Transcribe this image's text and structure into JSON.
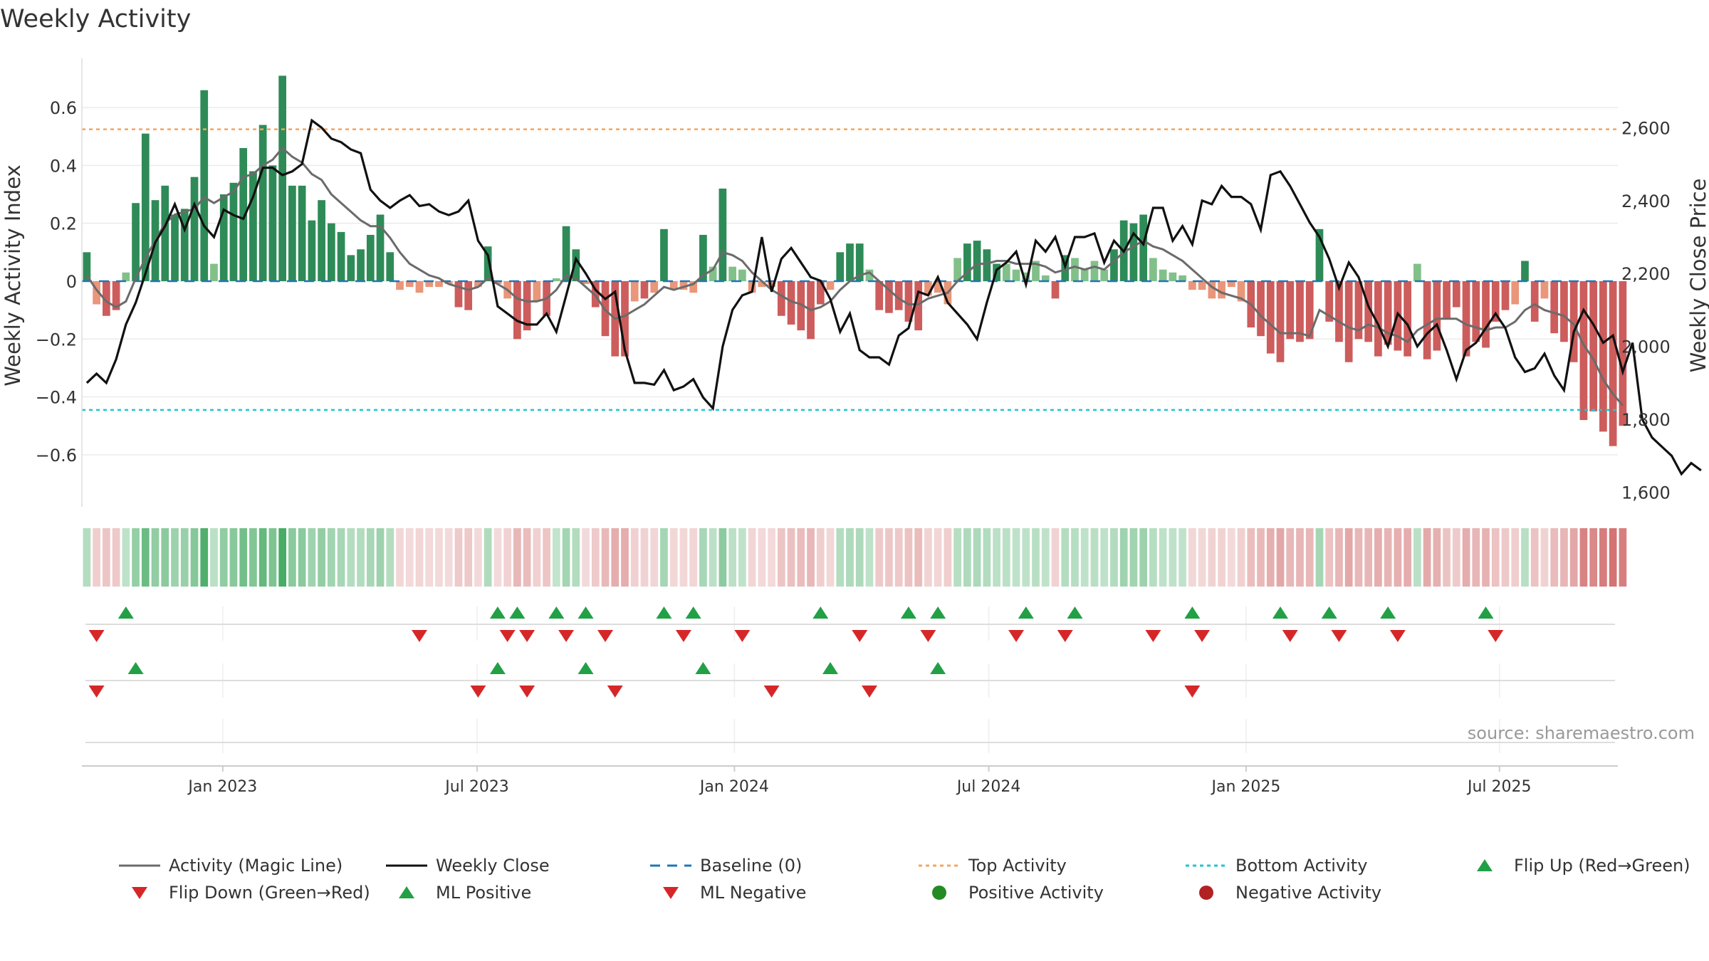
{
  "chart_data": {
    "type": "bar",
    "title": "Weekly Activity",
    "ylabel": "Weekly Activity Index",
    "y2label": "Weekly Close Price",
    "source": "source: sharemaestro.com",
    "ylim": [
      -0.78,
      0.77
    ],
    "y2lim": [
      1560,
      2790
    ],
    "yticks": [
      0.6,
      0.4,
      0.2,
      0,
      -0.2,
      -0.4,
      -0.6
    ],
    "ytick_labels": [
      "0.6",
      "0.4",
      "0.2",
      "0",
      "−0.2",
      "−0.4",
      "−0.6"
    ],
    "y2ticks": [
      2600,
      2400,
      2200,
      2000,
      1800,
      1600
    ],
    "y2tick_labels": [
      "2,600",
      "2,400",
      "2,200",
      "2,000",
      "1,800",
      "1,600"
    ],
    "xlabels": [
      "Jan 2023",
      "Jul 2023",
      "Jan 2024",
      "Jul 2024",
      "Jan 2025",
      "Jul 2025"
    ],
    "xlabel_weeks": [
      14.4,
      40.4,
      66.7,
      92.7,
      119.0,
      144.9
    ],
    "top_activity": 0.525,
    "bottom_activity": -0.445,
    "weeks": 157,
    "activity": [
      0.1,
      -0.08,
      -0.12,
      -0.1,
      0.03,
      0.27,
      0.51,
      0.28,
      0.33,
      0.23,
      0.25,
      0.36,
      0.66,
      0.06,
      0.3,
      0.34,
      0.46,
      0.38,
      0.54,
      0.4,
      0.71,
      0.33,
      0.33,
      0.21,
      0.28,
      0.2,
      0.17,
      0.09,
      0.11,
      0.16,
      0.23,
      0.1,
      -0.03,
      -0.02,
      -0.04,
      -0.02,
      -0.02,
      -0.01,
      -0.09,
      -0.1,
      -0.02,
      0.12,
      -0.01,
      -0.06,
      -0.2,
      -0.17,
      -0.07,
      -0.12,
      0.01,
      0.19,
      0.11,
      -0.01,
      -0.09,
      -0.19,
      -0.26,
      -0.26,
      -0.07,
      -0.06,
      -0.04,
      0.18,
      -0.03,
      -0.03,
      -0.04,
      0.16,
      0.05,
      0.32,
      0.05,
      0.04,
      -0.04,
      -0.02,
      -0.02,
      -0.12,
      -0.15,
      -0.17,
      -0.2,
      -0.08,
      -0.03,
      0.1,
      0.13,
      0.13,
      0.04,
      -0.1,
      -0.11,
      -0.1,
      -0.14,
      -0.17,
      -0.05,
      -0.04,
      -0.08,
      0.08,
      0.13,
      0.14,
      0.11,
      0.06,
      0.06,
      0.04,
      0.03,
      0.07,
      0.02,
      -0.06,
      0.09,
      0.08,
      0.04,
      0.07,
      0.04,
      0.11,
      0.21,
      0.2,
      0.23,
      0.08,
      0.04,
      0.03,
      0.02,
      -0.03,
      -0.03,
      -0.06,
      -0.06,
      -0.02,
      -0.07,
      -0.16,
      -0.19,
      -0.25,
      -0.28,
      -0.2,
      -0.21,
      -0.2,
      0.18,
      -0.14,
      -0.21,
      -0.28,
      -0.2,
      -0.21,
      -0.26,
      -0.22,
      -0.24,
      -0.26,
      0.06,
      -0.27,
      -0.24,
      -0.13,
      -0.09,
      -0.26,
      -0.21,
      -0.23,
      -0.14,
      -0.1,
      -0.08,
      0.07,
      -0.14,
      -0.06,
      -0.18,
      -0.21,
      -0.28,
      -0.48,
      -0.45,
      -0.52,
      -0.57,
      -0.5
    ],
    "magic_line": [
      0.02,
      -0.03,
      -0.07,
      -0.09,
      -0.07,
      0.01,
      0.08,
      0.14,
      0.2,
      0.23,
      0.24,
      0.25,
      0.29,
      0.27,
      0.29,
      0.31,
      0.36,
      0.37,
      0.4,
      0.42,
      0.46,
      0.43,
      0.41,
      0.37,
      0.35,
      0.3,
      0.27,
      0.24,
      0.21,
      0.19,
      0.19,
      0.15,
      0.1,
      0.06,
      0.04,
      0.02,
      0.01,
      -0.01,
      -0.02,
      -0.03,
      -0.02,
      0.01,
      -0.01,
      -0.03,
      -0.06,
      -0.07,
      -0.07,
      -0.06,
      -0.03,
      0.02,
      0.01,
      -0.02,
      -0.05,
      -0.1,
      -0.13,
      -0.12,
      -0.1,
      -0.08,
      -0.05,
      -0.02,
      -0.03,
      -0.02,
      -0.01,
      0.02,
      0.04,
      0.1,
      0.09,
      0.07,
      0.03,
      0,
      -0.03,
      -0.05,
      -0.07,
      -0.08,
      -0.1,
      -0.09,
      -0.07,
      -0.03,
      0,
      0.02,
      0.03,
      0,
      -0.03,
      -0.06,
      -0.08,
      -0.08,
      -0.06,
      -0.05,
      -0.04,
      0,
      0.03,
      0.06,
      0.06,
      0.07,
      0.07,
      0.06,
      0.06,
      0.06,
      0.05,
      0.03,
      0.04,
      0.05,
      0.04,
      0.05,
      0.04,
      0.07,
      0.1,
      0.12,
      0.14,
      0.12,
      0.11,
      0.09,
      0.07,
      0.04,
      0.01,
      -0.02,
      -0.04,
      -0.05,
      -0.06,
      -0.08,
      -0.12,
      -0.15,
      -0.18,
      -0.18,
      -0.18,
      -0.19,
      -0.1,
      -0.12,
      -0.14,
      -0.16,
      -0.17,
      -0.15,
      -0.16,
      -0.18,
      -0.19,
      -0.21,
      -0.17,
      -0.15,
      -0.13,
      -0.13,
      -0.13,
      -0.15,
      -0.16,
      -0.17,
      -0.16,
      -0.16,
      -0.14,
      -0.1,
      -0.08,
      -0.1,
      -0.11,
      -0.12,
      -0.15,
      -0.22,
      -0.27,
      -0.34,
      -0.39,
      -0.43
    ],
    "weekly_close": [
      1900,
      1925,
      1900,
      1965,
      2060,
      2120,
      2200,
      2285,
      2330,
      2390,
      2320,
      2390,
      2330,
      2300,
      2375,
      2360,
      2350,
      2410,
      2490,
      2490,
      2470,
      2480,
      2500,
      2620,
      2600,
      2570,
      2560,
      2540,
      2530,
      2430,
      2400,
      2380,
      2400,
      2415,
      2385,
      2390,
      2370,
      2360,
      2370,
      2400,
      2290,
      2250,
      2110,
      2090,
      2070,
      2060,
      2060,
      2090,
      2040,
      2140,
      2240,
      2200,
      2155,
      2130,
      2150,
      1990,
      1900,
      1900,
      1895,
      1935,
      1880,
      1890,
      1910,
      1860,
      1830,
      2000,
      2100,
      2140,
      2150,
      2300,
      2150,
      2240,
      2270,
      2230,
      2190,
      2180,
      2130,
      2040,
      2090,
      1990,
      1970,
      1970,
      1950,
      2030,
      2050,
      2150,
      2140,
      2190,
      2120,
      2090,
      2060,
      2020,
      2120,
      2210,
      2230,
      2260,
      2170,
      2290,
      2260,
      2300,
      2220,
      2300,
      2300,
      2310,
      2230,
      2290,
      2260,
      2310,
      2280,
      2380,
      2380,
      2290,
      2330,
      2280,
      2400,
      2390,
      2440,
      2410,
      2410,
      2390,
      2320,
      2470,
      2480,
      2440,
      2390,
      2340,
      2300,
      2240,
      2160,
      2230,
      2190,
      2110,
      2060,
      2000,
      2090,
      2060,
      2000,
      2035,
      2060,
      1990,
      1910,
      1990,
      2010,
      2050,
      2090,
      2050,
      1970,
      1930,
      1940,
      1980,
      1920,
      1880,
      2040,
      2100,
      2060,
      2010,
      2030,
      1930,
      2010,
      1800,
      1750,
      1725,
      1700,
      1650,
      1680,
      1660
    ],
    "flip_up": [
      4,
      42,
      44,
      48,
      51,
      59,
      62,
      75,
      84,
      87,
      96,
      101,
      113,
      122,
      127,
      133,
      143
    ],
    "flip_down": [
      1,
      34,
      43,
      45,
      49,
      53,
      61,
      67,
      79,
      86,
      95,
      100,
      109,
      114,
      123,
      128,
      134,
      144
    ],
    "ml_positive": [
      5,
      42,
      51,
      63,
      76,
      87
    ],
    "ml_negative": [
      1,
      40,
      45,
      54,
      70,
      80,
      113
    ],
    "series": [
      {
        "name": "Activity (Magic Line)",
        "color": "#6b6b6b"
      },
      {
        "name": "Weekly Close",
        "color": "#111111"
      },
      {
        "name": "Baseline (0)",
        "color": "#1f77b4"
      },
      {
        "name": "Top Activity",
        "color": "#f4a460"
      },
      {
        "name": "Bottom Activity",
        "color": "#20c5d0"
      }
    ],
    "legend": [
      "Activity (Magic Line)",
      "Weekly Close",
      "Baseline (0)",
      "Top Activity",
      "Bottom Activity",
      "Flip Up (Red→Green)",
      "Flip Down (Green→Red)",
      "ML Positive",
      "ML Negative",
      "Positive Activity",
      "Negative Activity"
    ],
    "legend_placement": "bottom",
    "colors": {
      "green_strong": "#2e8b57",
      "green_light": "#82c08a",
      "red_strong": "#cd5c5c",
      "red_light": "#e9967a",
      "marker_green": "#22a045",
      "marker_red": "#d62728",
      "positive_dot": "#228b22",
      "negative_dot": "#b22222"
    }
  }
}
